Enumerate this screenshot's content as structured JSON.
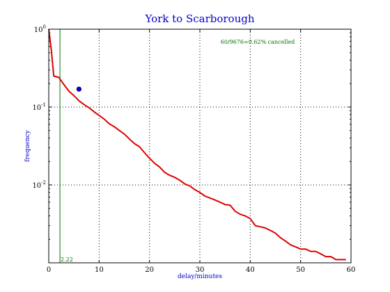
{
  "chart_data": {
    "type": "line",
    "title": "York to Scarborough",
    "xlabel": "delay/minutes",
    "ylabel": "frequency",
    "xlim": [
      0,
      60
    ],
    "ylim": [
      0.001,
      1
    ],
    "yscale": "log",
    "grid": true,
    "x_ticks": [
      0,
      10,
      20,
      30,
      40,
      50,
      60
    ],
    "y_ticks": [
      {
        "value": 1,
        "base": "10",
        "exp": "0"
      },
      {
        "value": 0.1,
        "base": "10",
        "exp": "-1"
      },
      {
        "value": 0.01,
        "base": "10",
        "exp": "-2"
      }
    ],
    "annotation": "60/9676=0.62% cancelled",
    "vline": {
      "x": 2.22,
      "label": "2.22",
      "color": "#007700"
    },
    "marker": {
      "x": 6,
      "y": 0.17,
      "color": "#0000ff"
    },
    "series": [
      {
        "color": "#dd0000",
        "x": [
          0,
          0.5,
          1,
          2,
          3,
          4,
          5,
          6,
          7,
          8,
          9,
          10,
          11,
          12,
          13,
          14,
          15,
          16,
          17,
          18,
          19,
          20,
          21,
          22,
          23,
          24,
          25,
          26,
          27,
          28,
          29,
          30,
          31,
          32,
          33,
          34,
          35,
          36,
          37,
          38,
          39,
          40,
          41,
          42,
          43,
          44,
          45,
          46,
          47,
          48,
          49,
          50,
          51,
          52,
          53,
          54,
          55,
          56,
          57,
          58,
          59
        ],
        "y": [
          1,
          0.55,
          0.25,
          0.24,
          0.195,
          0.16,
          0.14,
          0.12,
          0.108,
          0.098,
          0.087,
          0.078,
          0.07,
          0.061,
          0.056,
          0.05,
          0.045,
          0.039,
          0.034,
          0.031,
          0.026,
          0.022,
          0.019,
          0.017,
          0.0145,
          0.0133,
          0.0125,
          0.0115,
          0.0103,
          0.0097,
          0.0087,
          0.008,
          0.0072,
          0.0068,
          0.0064,
          0.006,
          0.0056,
          0.0055,
          0.0046,
          0.0042,
          0.004,
          0.0037,
          0.003,
          0.0029,
          0.0028,
          0.0026,
          0.0024,
          0.0021,
          0.0019,
          0.0017,
          0.0016,
          0.0015,
          0.0015,
          0.0014,
          0.0014,
          0.0013,
          0.0012,
          0.0012,
          0.0011,
          0.0011,
          0.0011
        ]
      }
    ]
  }
}
